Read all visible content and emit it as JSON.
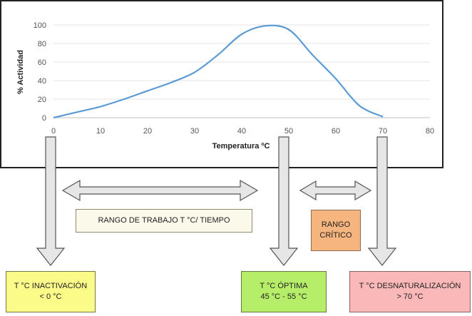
{
  "chart_data": {
    "type": "line",
    "title": "",
    "xlabel": "Temperatura ºC",
    "ylabel": "% Actividad",
    "xlim": [
      0,
      80
    ],
    "ylim": [
      0,
      100
    ],
    "x_ticks": [
      0,
      10,
      20,
      30,
      40,
      50,
      60,
      70,
      80
    ],
    "y_ticks": [
      0,
      20,
      40,
      60,
      80,
      100
    ],
    "grid": "horizontal",
    "legend": "none",
    "series": [
      {
        "color": "#5b9bd5",
        "points": [
          [
            0,
            0
          ],
          [
            5,
            6
          ],
          [
            10,
            12
          ],
          [
            15,
            20
          ],
          [
            20,
            29
          ],
          [
            25,
            38
          ],
          [
            30,
            49
          ],
          [
            35,
            68
          ],
          [
            40,
            90
          ],
          [
            45,
            99
          ],
          [
            50,
            95
          ],
          [
            55,
            68
          ],
          [
            60,
            42
          ],
          [
            65,
            13
          ],
          [
            70,
            1
          ]
        ]
      }
    ]
  },
  "annotations": {
    "range_work": "RANGO DE TRABAJO T °C/ TIEMPO",
    "range_critical": [
      "RANGO",
      "CRÍTICO"
    ],
    "inactivation": [
      "T °C INACTIVACIÓN",
      "< 0 °C"
    ],
    "optimal": [
      "T °C ÓPTIMA",
      "45 °C - 55 °C"
    ],
    "denaturation": [
      "T °C DESNATURALIZACIÓN",
      "> 70 °C"
    ]
  },
  "colors": {
    "curve": "#5b9bd5",
    "arrow_fill": "#e6e6e6",
    "arrow_stroke": "#555555",
    "inactivation_box": "#fbfb8a",
    "optimal_box": "#b6ee6a",
    "denaturation_box": "#fbb8b8",
    "critical_box": "#f6b47e",
    "work_box": "#fbf9ea"
  }
}
